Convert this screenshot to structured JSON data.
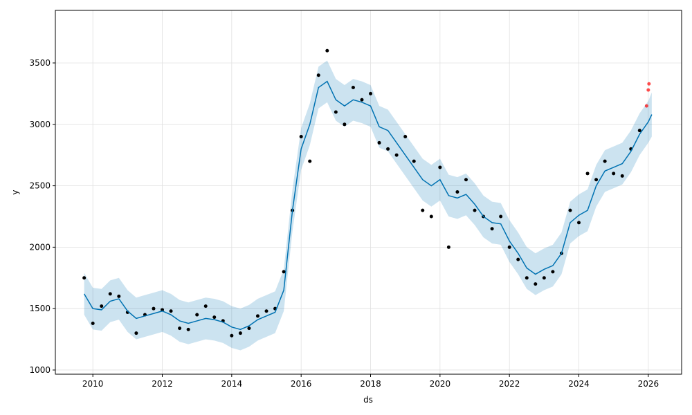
{
  "chart_data": {
    "type": "forecast",
    "x_label": "ds",
    "y_label": "y",
    "xlim": [
      2008.92,
      2026.96
    ],
    "ylim": [
      966,
      3928
    ],
    "xticks": [
      2010,
      2012,
      2014,
      2016,
      2018,
      2020,
      2022,
      2024,
      2026
    ],
    "yticks": [
      1000,
      1500,
      2000,
      2500,
      3000,
      3500
    ],
    "grid": true,
    "observed": {
      "color": "#000000",
      "x": [
        2009.75,
        2010,
        2010.25,
        2010.5,
        2010.75,
        2011,
        2011.25,
        2011.5,
        2011.75,
        2012,
        2012.25,
        2012.5,
        2012.75,
        2013,
        2013.25,
        2013.5,
        2013.75,
        2014,
        2014.25,
        2014.5,
        2014.75,
        2015,
        2015.25,
        2015.5,
        2015.75,
        2016,
        2016.25,
        2016.5,
        2016.75,
        2017,
        2017.25,
        2017.5,
        2017.75,
        2018,
        2018.25,
        2018.5,
        2018.75,
        2019,
        2019.25,
        2019.5,
        2019.75,
        2020,
        2020.25,
        2020.5,
        2020.75,
        2021,
        2021.25,
        2021.5,
        2021.75,
        2022,
        2022.25,
        2022.5,
        2022.75,
        2023,
        2023.25,
        2023.5,
        2023.75,
        2024,
        2024.25,
        2024.5,
        2024.75,
        2025,
        2025.25,
        2025.5,
        2025.75
      ],
      "values": [
        1750,
        1380,
        1520,
        1620,
        1600,
        1470,
        1300,
        1450,
        1500,
        1490,
        1480,
        1340,
        1330,
        1450,
        1520,
        1430,
        1400,
        1280,
        1300,
        1340,
        1440,
        1480,
        1500,
        1800,
        2300,
        2900,
        2700,
        3400,
        3600,
        3100,
        3000,
        3300,
        3200,
        3250,
        2850,
        2800,
        2750,
        2900,
        2700,
        2300,
        2250,
        2650,
        2000,
        2450,
        2550,
        2300,
        2250,
        2150,
        2250,
        2000,
        1900,
        1750,
        1700,
        1750,
        1800,
        1950,
        2300,
        2200,
        2600,
        2550,
        2700,
        2600,
        2580,
        2800,
        2950
      ]
    },
    "future_actual": {
      "color": "#ff0000",
      "x": [
        2025.95,
        2026.0,
        2026.02
      ],
      "values": [
        3150,
        3280,
        3330
      ]
    },
    "forecast": {
      "color": "#0072B2",
      "band_color": "#0072B2",
      "x": [
        2009.75,
        2010,
        2010.25,
        2010.5,
        2010.75,
        2011,
        2011.25,
        2011.5,
        2011.75,
        2012,
        2012.25,
        2012.5,
        2012.75,
        2013,
        2013.25,
        2013.5,
        2013.75,
        2014,
        2014.25,
        2014.5,
        2014.75,
        2015,
        2015.25,
        2015.5,
        2015.75,
        2016,
        2016.25,
        2016.5,
        2016.75,
        2017,
        2017.25,
        2017.5,
        2017.75,
        2018,
        2018.25,
        2018.5,
        2018.75,
        2019,
        2019.25,
        2019.5,
        2019.75,
        2020,
        2020.25,
        2020.5,
        2020.75,
        2021,
        2021.25,
        2021.5,
        2021.75,
        2022,
        2022.25,
        2022.5,
        2022.75,
        2023,
        2023.25,
        2023.5,
        2023.75,
        2024,
        2024.25,
        2024.5,
        2024.75,
        2025,
        2025.25,
        2025.5,
        2025.75,
        2026,
        2026.1
      ],
      "values": [
        1620,
        1500,
        1490,
        1560,
        1580,
        1480,
        1420,
        1440,
        1460,
        1480,
        1450,
        1400,
        1380,
        1400,
        1420,
        1410,
        1390,
        1350,
        1330,
        1360,
        1410,
        1440,
        1470,
        1650,
        2300,
        2800,
        3000,
        3300,
        3350,
        3200,
        3150,
        3200,
        3180,
        3150,
        2980,
        2950,
        2850,
        2750,
        2650,
        2550,
        2500,
        2550,
        2420,
        2400,
        2430,
        2350,
        2250,
        2200,
        2190,
        2050,
        1950,
        1830,
        1780,
        1820,
        1850,
        1950,
        2200,
        2260,
        2300,
        2500,
        2620,
        2650,
        2680,
        2780,
        2920,
        3020,
        3080
      ],
      "lower": [
        1450,
        1330,
        1320,
        1390,
        1410,
        1310,
        1250,
        1270,
        1290,
        1310,
        1280,
        1230,
        1210,
        1230,
        1250,
        1240,
        1220,
        1180,
        1160,
        1190,
        1240,
        1270,
        1300,
        1480,
        2130,
        2630,
        2830,
        3130,
        3180,
        3030,
        2980,
        3030,
        3010,
        2980,
        2810,
        2780,
        2680,
        2580,
        2480,
        2380,
        2330,
        2380,
        2250,
        2230,
        2260,
        2180,
        2080,
        2030,
        2020,
        1880,
        1780,
        1660,
        1610,
        1650,
        1680,
        1780,
        2030,
        2090,
        2130,
        2330,
        2450,
        2480,
        2510,
        2610,
        2750,
        2850,
        2900
      ],
      "upper": [
        1790,
        1670,
        1660,
        1730,
        1750,
        1650,
        1590,
        1610,
        1630,
        1650,
        1620,
        1570,
        1550,
        1570,
        1590,
        1580,
        1560,
        1520,
        1500,
        1530,
        1580,
        1610,
        1640,
        1820,
        2470,
        2970,
        3170,
        3470,
        3520,
        3370,
        3320,
        3370,
        3350,
        3320,
        3150,
        3120,
        3020,
        2920,
        2820,
        2720,
        2670,
        2720,
        2590,
        2570,
        2600,
        2520,
        2420,
        2370,
        2360,
        2220,
        2120,
        2000,
        1950,
        1990,
        2020,
        2120,
        2370,
        2430,
        2470,
        2670,
        2790,
        2820,
        2850,
        2950,
        3090,
        3190,
        3260
      ]
    }
  }
}
